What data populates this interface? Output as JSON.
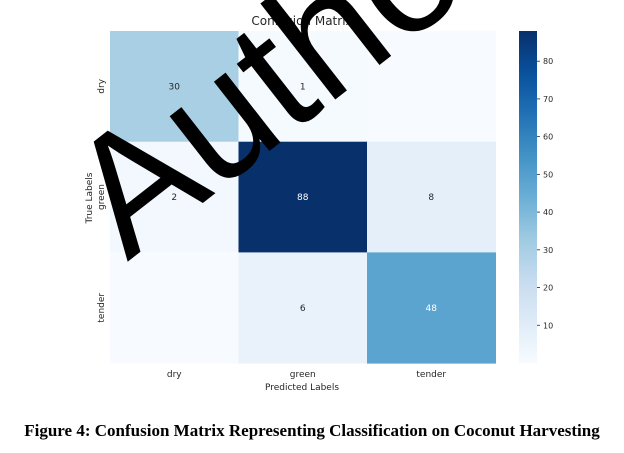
{
  "chart_data": {
    "type": "heatmap",
    "title": "Confusion Matrix",
    "xlabel": "Predicted Labels",
    "ylabel": "True Labels",
    "x_categories": [
      "dry",
      "green",
      "tender"
    ],
    "y_categories": [
      "dry",
      "green",
      "tender"
    ],
    "values": [
      [
        30,
        1,
        0
      ],
      [
        2,
        88,
        8
      ],
      [
        0,
        6,
        48
      ]
    ],
    "cell_labels": [
      [
        "30",
        "1",
        ""
      ],
      [
        "2",
        "88",
        "8"
      ],
      [
        "",
        "6",
        "48"
      ]
    ],
    "colorbar": {
      "min": 0,
      "max": 88,
      "ticks": [
        10,
        20,
        30,
        40,
        50,
        60,
        70,
        80
      ],
      "tick_labels": [
        "10",
        "20",
        "30",
        "40",
        "50",
        "60",
        "70",
        "80"
      ],
      "colormap": "Blues"
    }
  },
  "caption": "Figure 4: Confusion Matrix Representing Classification on Coconut Harvesting",
  "watermark": "Authors Pre-Print"
}
